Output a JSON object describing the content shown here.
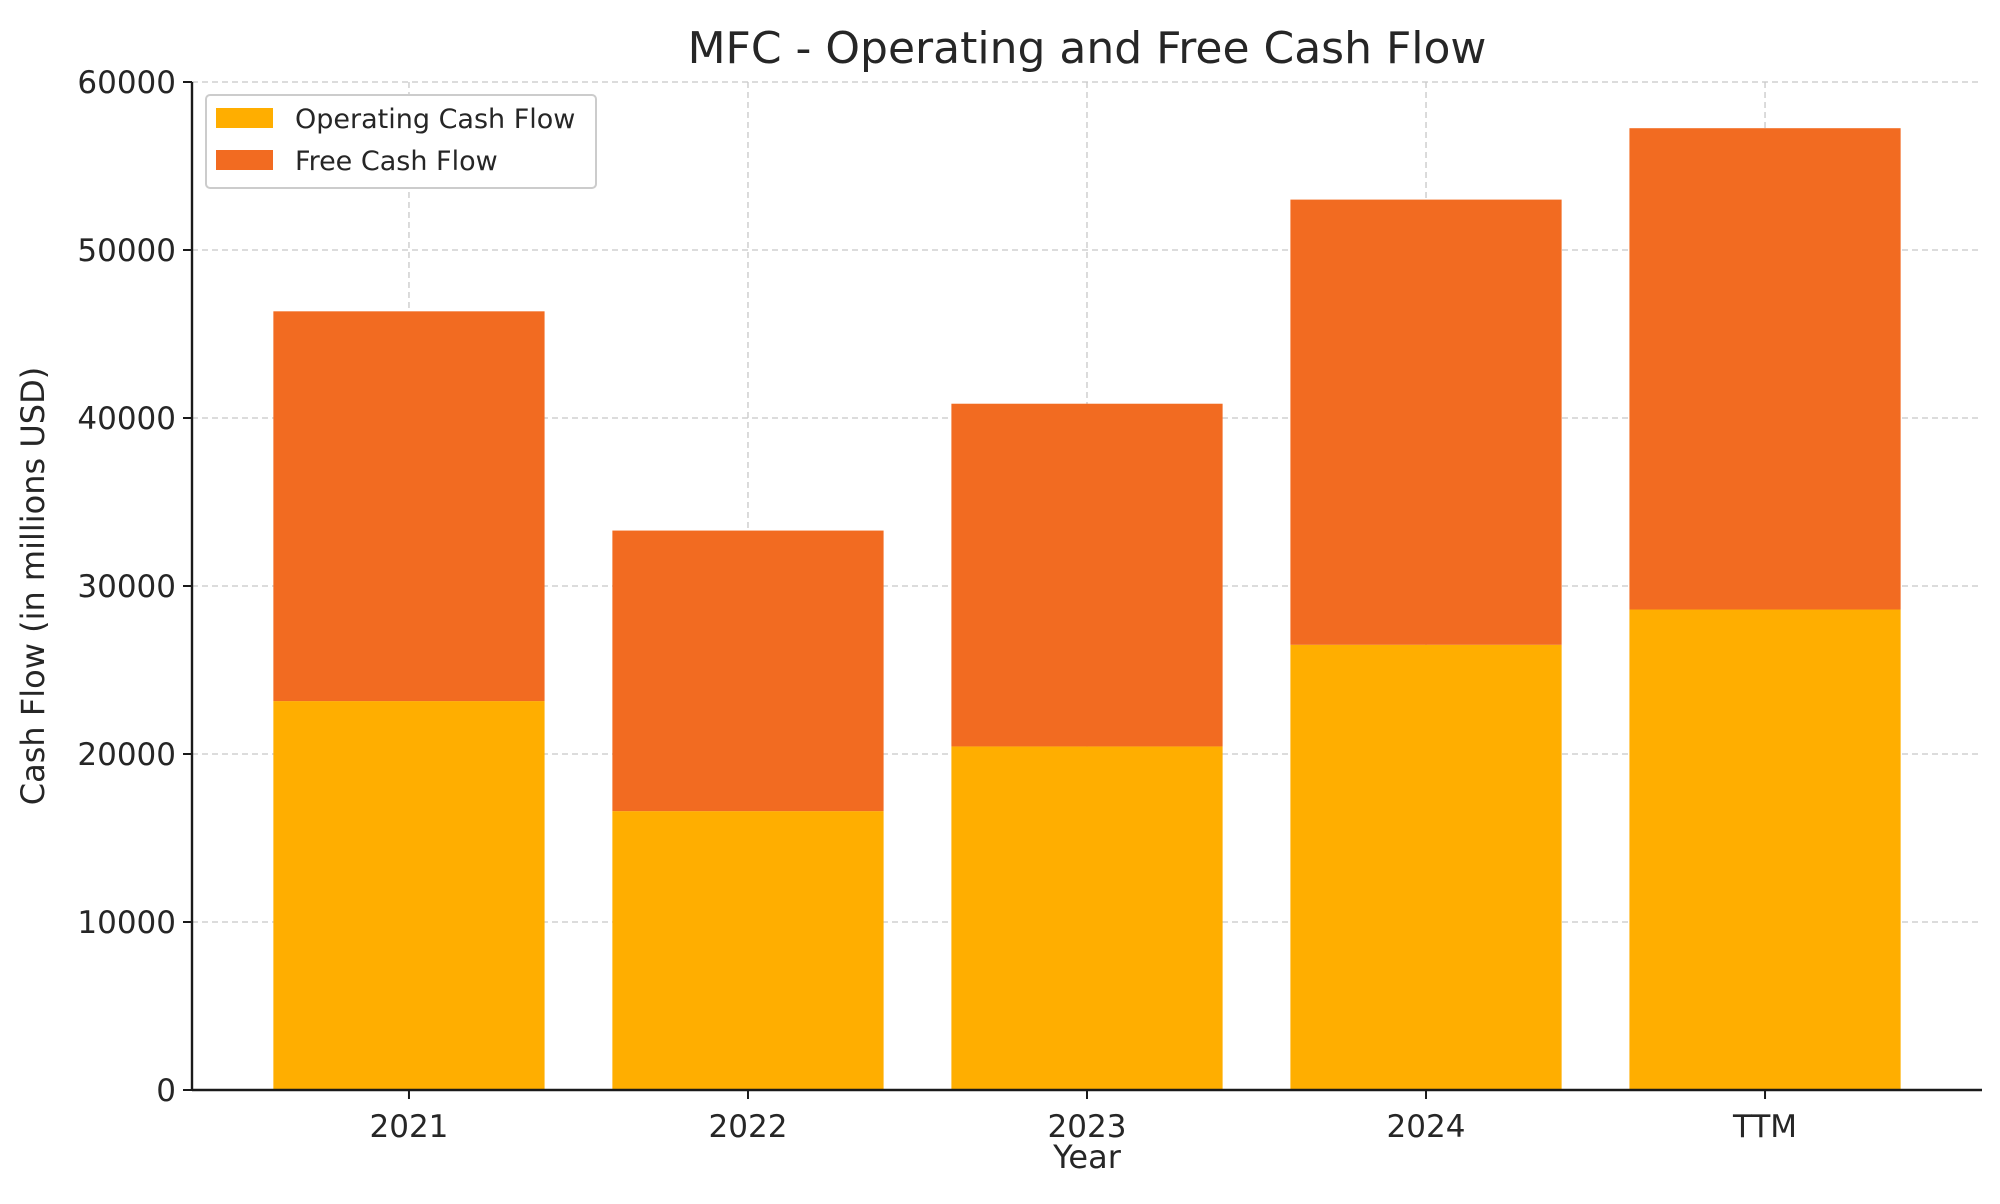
{
  "chart_data": {
    "type": "bar",
    "stacked": true,
    "title": "MFC - Operating and Free Cash Flow",
    "xlabel": "Year",
    "ylabel": "Cash Flow (in millions USD)",
    "categories": [
      "2021",
      "2022",
      "2023",
      "2024",
      "TTM"
    ],
    "ylim": [
      0,
      60000
    ],
    "yticks": [
      0,
      10000,
      20000,
      30000,
      40000,
      50000,
      60000
    ],
    "ytick_labels": [
      "0",
      "10000",
      "20000",
      "30000",
      "40000",
      "50000",
      "60000"
    ],
    "grid": true,
    "legend_position": "top-left",
    "series": [
      {
        "name": "Operating Cash Flow",
        "color": "#FFAE00",
        "values": [
          23150,
          16600,
          20450,
          26500,
          28600
        ]
      },
      {
        "name": "Free Cash Flow",
        "color": "#F26B21",
        "values": [
          23200,
          16700,
          20400,
          26500,
          28650
        ]
      }
    ]
  }
}
